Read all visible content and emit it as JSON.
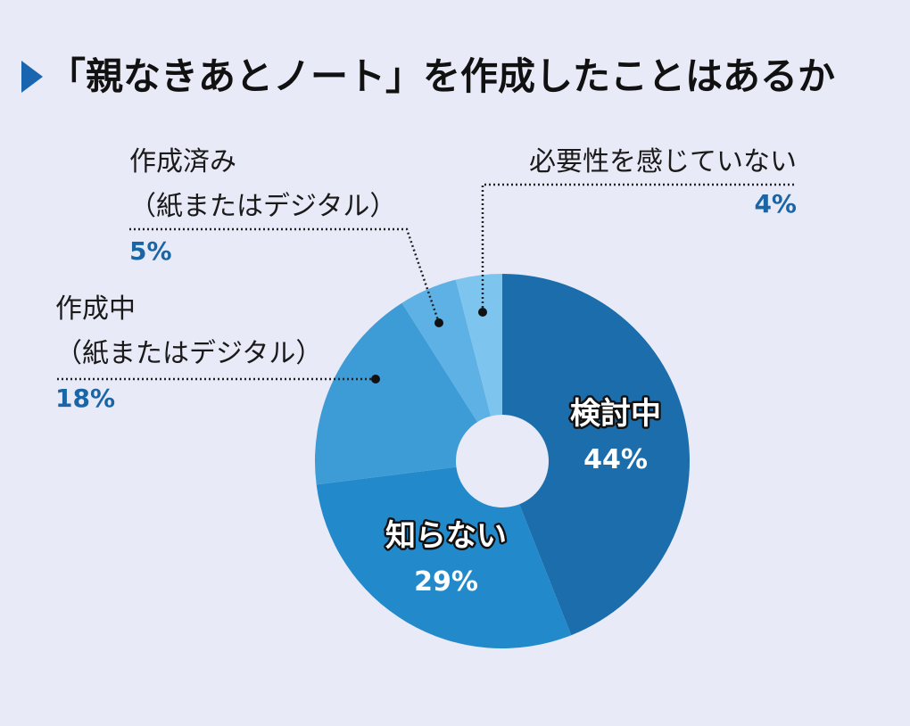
{
  "chart_data": {
    "type": "pie",
    "title": "「親なきあとノート」を作成したことはあるか",
    "categories": [
      "検討中",
      "知らない",
      "作成中\n（紙またはデジタル）",
      "作成済み\n（紙またはデジタル）",
      "必要性を感じていない"
    ],
    "values": [
      44,
      29,
      18,
      5,
      4
    ],
    "value_labels": [
      "44%",
      "29%",
      "18%",
      "5%",
      "4%"
    ],
    "colors": [
      "#1c6dab",
      "#2289cb",
      "#3d9bd6",
      "#5db1e5",
      "#7dc4ee"
    ],
    "donut": true
  }
}
